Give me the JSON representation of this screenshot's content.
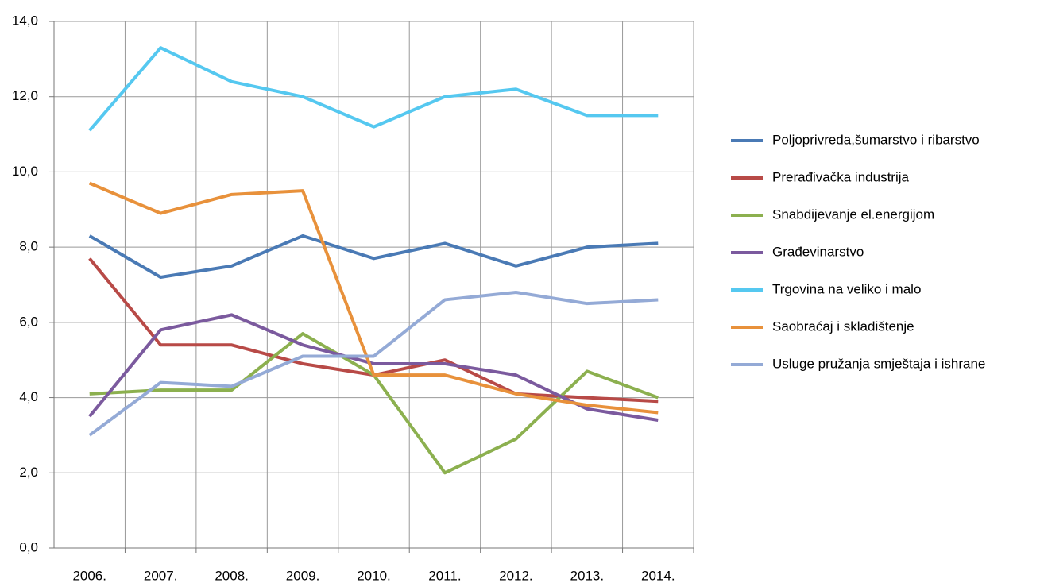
{
  "chart_data": {
    "type": "line",
    "categories": [
      "2006.",
      "2007.",
      "2008.",
      "2009.",
      "2010.",
      "2011.",
      "2012.",
      "2013.",
      "2014."
    ],
    "series": [
      {
        "name": "Poljoprivreda,šumarstvo i ribarstvo",
        "color": "#4a7ab5",
        "values": [
          8.3,
          7.2,
          7.5,
          8.3,
          7.7,
          8.1,
          7.5,
          8.0,
          8.1
        ]
      },
      {
        "name": "Prerađivačka  industrija",
        "color": "#b84a47",
        "values": [
          7.7,
          5.4,
          5.4,
          4.9,
          4.6,
          5.0,
          4.1,
          4.0,
          3.9
        ]
      },
      {
        "name": "Snabdijevanje el.energijom",
        "color": "#8cb04f",
        "values": [
          4.1,
          4.2,
          4.2,
          5.7,
          4.6,
          2.0,
          2.9,
          4.7,
          4.0
        ]
      },
      {
        "name": "Građevinarstvo",
        "color": "#7b5a9e",
        "values": [
          3.5,
          5.8,
          6.2,
          5.4,
          4.9,
          4.9,
          4.6,
          3.7,
          3.4
        ]
      },
      {
        "name": "Trgovina na veliko i malo",
        "color": "#55c8f0",
        "values": [
          11.1,
          13.3,
          12.4,
          12.0,
          11.2,
          12.0,
          12.2,
          11.5,
          11.5
        ]
      },
      {
        "name": "Saobraćaj i skladištenje",
        "color": "#e8913b",
        "values": [
          9.7,
          8.9,
          9.4,
          9.5,
          4.6,
          4.6,
          4.1,
          3.8,
          3.6
        ]
      },
      {
        "name": "Usluge pružanja  smještaja  i ishrane",
        "color": "#94aad6",
        "values": [
          3.0,
          4.4,
          4.3,
          5.1,
          5.1,
          6.6,
          6.8,
          6.5,
          6.6
        ]
      }
    ],
    "ylim": [
      0,
      14
    ],
    "yticks": [
      {
        "value": 0,
        "label": "0,0"
      },
      {
        "value": 2,
        "label": "2,0"
      },
      {
        "value": 4,
        "label": "4,0"
      },
      {
        "value": 6,
        "label": "6,0"
      },
      {
        "value": 8,
        "label": "8,0"
      },
      {
        "value": 10,
        "label": "10,0"
      },
      {
        "value": 12,
        "label": "12,0"
      },
      {
        "value": 14,
        "label": "14,0"
      }
    ],
    "grid": true,
    "legend": "right"
  }
}
